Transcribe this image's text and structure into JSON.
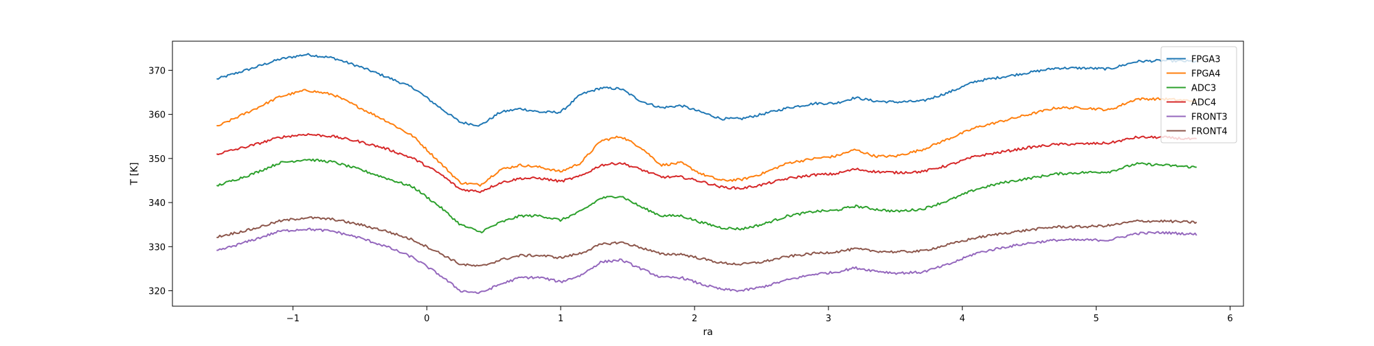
{
  "chart_data": {
    "type": "line",
    "title": "",
    "xlabel": "ra",
    "ylabel": "T [K]",
    "xlim": [
      -1.9,
      6.1
    ],
    "ylim": [
      316.5,
      376.6
    ],
    "xticks": [
      -1,
      0,
      1,
      2,
      3,
      4,
      5,
      6
    ],
    "yticks": [
      320,
      330,
      340,
      350,
      360,
      370
    ],
    "grid": false,
    "legend_position": "top-right",
    "x": [
      -1.57,
      -1.3,
      -1.1,
      -0.9,
      -0.7,
      -0.5,
      -0.3,
      -0.1,
      0.1,
      0.25,
      0.4,
      0.55,
      0.7,
      0.85,
      1.0,
      1.15,
      1.3,
      1.45,
      1.6,
      1.75,
      1.9,
      2.05,
      2.2,
      2.35,
      2.5,
      2.7,
      2.9,
      3.05,
      3.2,
      3.35,
      3.5,
      3.7,
      3.9,
      4.1,
      4.3,
      4.5,
      4.7,
      4.9,
      5.1,
      5.3,
      5.5,
      5.75
    ],
    "series": [
      {
        "name": "FPGA3",
        "color": "#1f77b4",
        "values": [
          368.0,
          370.5,
          372.5,
          373.6,
          372.8,
          370.8,
          368.5,
          366.0,
          361.5,
          358.2,
          357.5,
          360.5,
          361.3,
          360.5,
          360.5,
          364.5,
          366.0,
          365.8,
          363.0,
          361.5,
          362.0,
          360.5,
          359.0,
          359.0,
          360.0,
          361.5,
          362.5,
          362.5,
          363.8,
          363.0,
          362.8,
          363.0,
          365.0,
          367.5,
          368.5,
          369.5,
          370.5,
          370.5,
          370.3,
          372.0,
          372.2,
          372.0
        ]
      },
      {
        "name": "FPGA4",
        "color": "#ff7f0e",
        "values": [
          357.2,
          361.0,
          364.0,
          365.5,
          364.5,
          361.5,
          358.5,
          355.0,
          349.0,
          344.5,
          344.0,
          347.5,
          348.5,
          348.0,
          347.0,
          349.0,
          354.0,
          355.0,
          352.5,
          348.5,
          349.0,
          346.5,
          345.0,
          345.2,
          346.5,
          349.0,
          350.0,
          350.5,
          352.0,
          350.5,
          350.5,
          352.0,
          354.5,
          357.0,
          358.5,
          360.0,
          361.5,
          361.5,
          361.0,
          363.5,
          363.5,
          363.0
        ]
      },
      {
        "name": "ADC3",
        "color": "#2ca02c",
        "values": [
          343.8,
          346.5,
          349.0,
          349.8,
          349.2,
          347.5,
          345.5,
          343.5,
          339.0,
          335.0,
          333.3,
          335.5,
          337.0,
          337.0,
          336.0,
          338.0,
          341.0,
          341.5,
          339.0,
          337.0,
          337.0,
          335.5,
          334.3,
          334.0,
          335.0,
          337.0,
          338.0,
          338.2,
          339.2,
          338.5,
          338.0,
          338.5,
          340.5,
          343.0,
          344.5,
          345.5,
          346.5,
          346.8,
          347.0,
          348.8,
          348.5,
          348.0
        ]
      },
      {
        "name": "ADC4",
        "color": "#d62728",
        "values": [
          351.0,
          353.0,
          354.8,
          355.5,
          355.0,
          353.8,
          352.2,
          350.0,
          346.5,
          343.0,
          342.5,
          344.5,
          345.5,
          345.5,
          344.8,
          346.0,
          348.5,
          349.0,
          347.5,
          345.8,
          345.8,
          344.8,
          343.5,
          343.2,
          344.0,
          345.5,
          346.3,
          346.5,
          347.6,
          347.0,
          346.8,
          347.0,
          348.5,
          350.5,
          351.5,
          352.5,
          353.2,
          353.3,
          353.5,
          354.8,
          354.8,
          354.3
        ]
      },
      {
        "name": "FRONT3",
        "color": "#9467bd",
        "values": [
          329.0,
          331.5,
          333.5,
          334.0,
          333.5,
          332.0,
          330.0,
          327.5,
          323.5,
          320.0,
          319.5,
          321.5,
          323.0,
          323.0,
          322.0,
          323.5,
          326.5,
          327.0,
          325.0,
          323.0,
          323.0,
          321.5,
          320.3,
          320.0,
          320.8,
          322.5,
          323.8,
          324.2,
          325.2,
          324.5,
          324.0,
          324.2,
          326.0,
          328.5,
          329.8,
          330.8,
          331.5,
          331.5,
          331.5,
          333.0,
          333.2,
          332.8
        ]
      },
      {
        "name": "FRONT4",
        "color": "#8c564b",
        "values": [
          332.2,
          334.0,
          335.8,
          336.6,
          336.2,
          335.0,
          333.5,
          331.5,
          328.5,
          326.0,
          325.5,
          327.0,
          328.0,
          328.0,
          327.5,
          328.5,
          330.5,
          331.0,
          329.8,
          328.3,
          328.3,
          327.3,
          326.3,
          326.0,
          326.5,
          327.8,
          328.5,
          328.8,
          329.5,
          329.0,
          328.8,
          329.0,
          330.5,
          332.0,
          333.0,
          333.8,
          334.5,
          334.5,
          334.8,
          335.8,
          335.8,
          335.5
        ]
      }
    ]
  }
}
